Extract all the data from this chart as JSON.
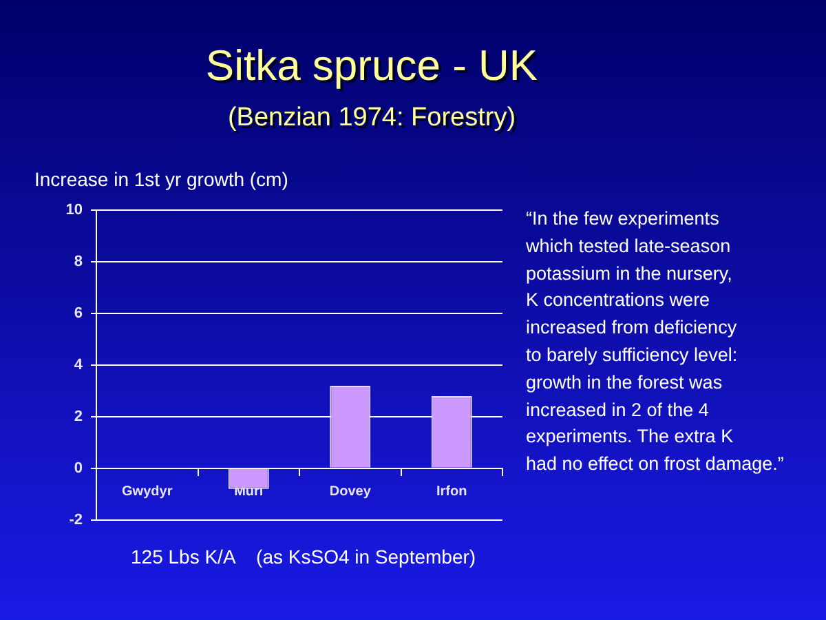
{
  "chart_data": {
    "type": "bar",
    "title": "Sitka spruce - UK",
    "subtitle": "(Benzian 1974: Forestry)",
    "ylabel": "Increase in 1st yr growth (cm)",
    "xlabel": "125 Lbs K/A    (as KsSO4 in September)",
    "annotations": [
      "“In the few experiments\nwhich tested late-season\npotassium in the nursery,\nK concentrations were\nincreased from deficiency\nto barely sufficiency level:\ngrowth in the forest was\nincreased in 2 of the 4\nexperiments.  The extra K\nhad no effect on frost damage.”"
    ],
    "categories": [
      "Gwydyr",
      "Muri",
      "Dovey",
      "Irfon"
    ],
    "values": [
      0,
      -0.8,
      3.2,
      2.8
    ],
    "color": "#cc99ff",
    "ylim": [
      -2,
      10
    ],
    "yticks": [
      -2,
      0,
      2,
      4,
      6,
      8,
      10
    ],
    "grid": "y"
  }
}
